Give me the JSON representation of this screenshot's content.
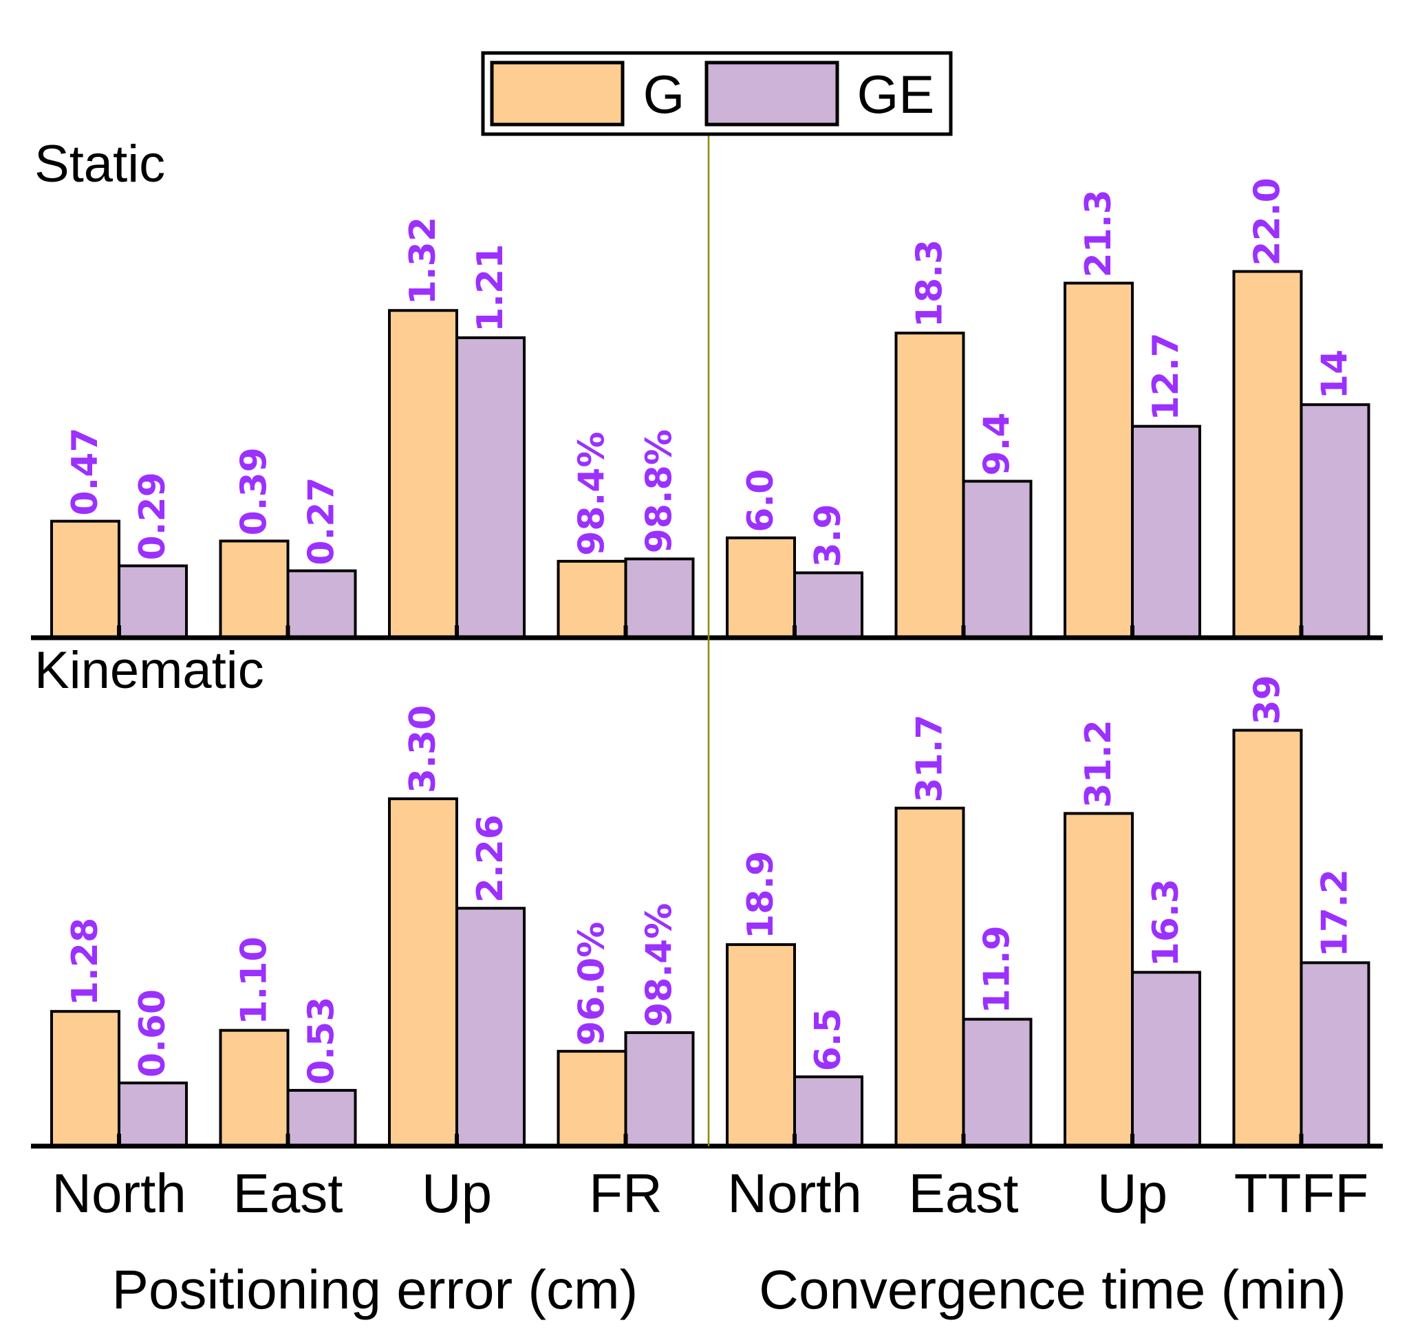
{
  "chart_data": {
    "type": "bar",
    "legend": {
      "placement": "top-center",
      "entries": [
        {
          "label": "G",
          "color": "#FECD92"
        },
        {
          "label": "GE",
          "color": "#CCB3D7"
        }
      ]
    },
    "categories": [
      "North",
      "East",
      "Up",
      "FR",
      "North",
      "East",
      "Up",
      "TTFF"
    ],
    "group_labels": [
      "Positioning error (cm)",
      "Convergence time (min)"
    ],
    "value_label_color": "#9B30FF",
    "panels": [
      {
        "title": "Static",
        "series": [
          {
            "name": "G",
            "values": [
              0.47,
              0.39,
              1.32,
              98.4,
              6.0,
              18.3,
              21.3,
              22.0
            ],
            "labels": [
              "0.47",
              "0.39",
              "1.32",
              "98.4%",
              "6.0",
              "18.3",
              "21.3",
              "22.0"
            ]
          },
          {
            "name": "GE",
            "values": [
              0.29,
              0.27,
              1.21,
              98.8,
              3.9,
              9.4,
              12.7,
              14
            ],
            "labels": [
              "0.29",
              "0.27",
              "1.21",
              "98.8%",
              "3.9",
              "9.4",
              "12.7",
              "14"
            ]
          }
        ]
      },
      {
        "title": "Kinematic",
        "series": [
          {
            "name": "G",
            "values": [
              1.28,
              1.1,
              3.3,
              96.0,
              18.9,
              31.7,
              31.2,
              39
            ],
            "labels": [
              "1.28",
              "1.10",
              "3.30",
              "96.0%",
              "18.9",
              "31.7",
              "31.2",
              "39"
            ]
          },
          {
            "name": "GE",
            "values": [
              0.6,
              0.53,
              2.26,
              98.4,
              6.5,
              11.9,
              16.3,
              17.2
            ],
            "labels": [
              "0.60",
              "0.53",
              "2.26",
              "98.4%",
              "6.5",
              "11.9",
              "16.3",
              "17.2"
            ]
          }
        ]
      }
    ]
  }
}
